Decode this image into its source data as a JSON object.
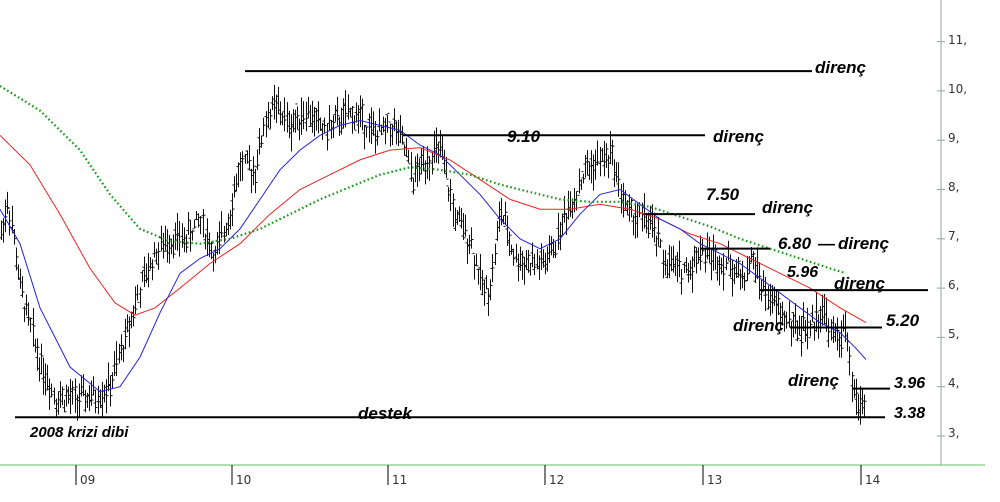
{
  "chart_data": {
    "type": "line",
    "y_axis": {
      "range": [
        2.4,
        11.8
      ],
      "ticks": [
        "3,",
        "4,",
        "5,",
        "6,",
        "7,",
        "8,",
        "9,",
        "10,",
        "11,"
      ]
    },
    "x_axis": {
      "ticks": [
        "09",
        "10",
        "11",
        "12",
        "13",
        "14"
      ]
    },
    "grid": false,
    "series": [
      {
        "color": "#000000",
        "style": "ohlc-bars"
      },
      {
        "color": "#2222dd",
        "style": "line"
      },
      {
        "color": "#ee2222",
        "style": "line"
      },
      {
        "color": "#119911",
        "style": "dotted"
      }
    ],
    "price_path": [
      [
        0,
        7.0
      ],
      [
        8,
        7.8
      ],
      [
        20,
        6.0
      ],
      [
        38,
        4.6
      ],
      [
        55,
        3.8
      ],
      [
        75,
        3.75
      ],
      [
        95,
        3.8
      ],
      [
        110,
        4.0
      ],
      [
        125,
        5.0
      ],
      [
        140,
        6.0
      ],
      [
        155,
        6.7
      ],
      [
        170,
        7.0
      ],
      [
        185,
        7.0
      ],
      [
        200,
        7.4
      ],
      [
        215,
        6.6
      ],
      [
        230,
        7.6
      ],
      [
        240,
        8.5
      ],
      [
        255,
        8.4
      ],
      [
        265,
        9.4
      ],
      [
        275,
        9.7
      ],
      [
        290,
        9.3
      ],
      [
        305,
        9.6
      ],
      [
        325,
        9.2
      ],
      [
        345,
        9.5
      ],
      [
        360,
        9.5
      ],
      [
        375,
        9.1
      ],
      [
        393,
        9.3
      ],
      [
        405,
        8.8
      ],
      [
        412,
        8.2
      ],
      [
        425,
        8.6
      ],
      [
        440,
        8.8
      ],
      [
        455,
        7.4
      ],
      [
        470,
        7.0
      ],
      [
        482,
        6.0
      ],
      [
        490,
        6.0
      ],
      [
        500,
        7.6
      ],
      [
        515,
        6.6
      ],
      [
        530,
        6.5
      ],
      [
        545,
        6.5
      ],
      [
        555,
        6.9
      ],
      [
        565,
        7.5
      ],
      [
        575,
        7.9
      ],
      [
        585,
        8.4
      ],
      [
        600,
        8.6
      ],
      [
        612,
        8.7
      ],
      [
        620,
        8.0
      ],
      [
        628,
        7.5
      ],
      [
        645,
        7.4
      ],
      [
        655,
        7.1
      ],
      [
        665,
        6.5
      ],
      [
        678,
        6.4
      ],
      [
        690,
        6.4
      ],
      [
        700,
        6.8
      ],
      [
        715,
        6.6
      ],
      [
        728,
        6.5
      ],
      [
        742,
        6.2
      ],
      [
        752,
        6.6
      ],
      [
        765,
        5.9
      ],
      [
        780,
        5.5
      ],
      [
        795,
        5.2
      ],
      [
        810,
        5.2
      ],
      [
        822,
        5.6
      ],
      [
        832,
        5.0
      ],
      [
        846,
        5.1
      ],
      [
        851,
        4.1
      ],
      [
        857,
        3.6
      ],
      [
        866,
        3.75
      ]
    ],
    "blue_ma_path": [
      [
        0,
        7.6
      ],
      [
        20,
        6.9
      ],
      [
        40,
        5.6
      ],
      [
        70,
        4.4
      ],
      [
        100,
        3.9
      ],
      [
        120,
        4.0
      ],
      [
        140,
        4.6
      ],
      [
        160,
        5.5
      ],
      [
        180,
        6.3
      ],
      [
        200,
        6.6
      ],
      [
        220,
        6.8
      ],
      [
        240,
        7.2
      ],
      [
        260,
        7.8
      ],
      [
        280,
        8.4
      ],
      [
        300,
        8.8
      ],
      [
        320,
        9.1
      ],
      [
        340,
        9.3
      ],
      [
        360,
        9.4
      ],
      [
        380,
        9.3
      ],
      [
        400,
        9.2
      ],
      [
        420,
        8.9
      ],
      [
        440,
        8.7
      ],
      [
        460,
        8.3
      ],
      [
        480,
        7.9
      ],
      [
        500,
        7.4
      ],
      [
        520,
        7.0
      ],
      [
        540,
        6.8
      ],
      [
        560,
        7.0
      ],
      [
        580,
        7.5
      ],
      [
        600,
        7.9
      ],
      [
        620,
        8.0
      ],
      [
        640,
        7.7
      ],
      [
        660,
        7.4
      ],
      [
        680,
        7.2
      ],
      [
        700,
        6.9
      ],
      [
        720,
        6.7
      ],
      [
        740,
        6.5
      ],
      [
        760,
        6.2
      ],
      [
        780,
        5.9
      ],
      [
        800,
        5.6
      ],
      [
        820,
        5.3
      ],
      [
        840,
        5.1
      ],
      [
        855,
        4.8
      ],
      [
        866,
        4.55
      ]
    ],
    "red_ma_path": [
      [
        0,
        9.1
      ],
      [
        30,
        8.5
      ],
      [
        60,
        7.5
      ],
      [
        90,
        6.4
      ],
      [
        115,
        5.7
      ],
      [
        135,
        5.45
      ],
      [
        155,
        5.6
      ],
      [
        180,
        6.0
      ],
      [
        210,
        6.5
      ],
      [
        240,
        6.9
      ],
      [
        270,
        7.5
      ],
      [
        300,
        8.0
      ],
      [
        330,
        8.3
      ],
      [
        360,
        8.6
      ],
      [
        390,
        8.8
      ],
      [
        420,
        8.85
      ],
      [
        450,
        8.6
      ],
      [
        480,
        8.2
      ],
      [
        510,
        7.8
      ],
      [
        540,
        7.6
      ],
      [
        570,
        7.6
      ],
      [
        600,
        7.7
      ],
      [
        630,
        7.6
      ],
      [
        660,
        7.4
      ],
      [
        690,
        7.1
      ],
      [
        720,
        6.9
      ],
      [
        750,
        6.6
      ],
      [
        780,
        6.3
      ],
      [
        810,
        6.0
      ],
      [
        840,
        5.6
      ],
      [
        866,
        5.3
      ]
    ],
    "green_ma_path": [
      [
        0,
        10.1
      ],
      [
        40,
        9.6
      ],
      [
        80,
        8.8
      ],
      [
        110,
        7.9
      ],
      [
        140,
        7.2
      ],
      [
        170,
        6.95
      ],
      [
        200,
        6.9
      ],
      [
        230,
        7.0
      ],
      [
        260,
        7.2
      ],
      [
        290,
        7.5
      ],
      [
        320,
        7.8
      ],
      [
        350,
        8.05
      ],
      [
        380,
        8.3
      ],
      [
        410,
        8.45
      ],
      [
        440,
        8.4
      ],
      [
        470,
        8.3
      ],
      [
        500,
        8.1
      ],
      [
        530,
        7.95
      ],
      [
        560,
        7.8
      ],
      [
        590,
        7.75
      ],
      [
        620,
        7.75
      ],
      [
        650,
        7.65
      ],
      [
        680,
        7.45
      ],
      [
        710,
        7.25
      ],
      [
        740,
        7.0
      ],
      [
        770,
        6.8
      ],
      [
        800,
        6.6
      ],
      [
        830,
        6.4
      ],
      [
        846,
        6.3
      ]
    ],
    "levels": [
      {
        "value": 10.4,
        "x0": 245,
        "x1": 812,
        "label": "direnç"
      },
      {
        "value": 9.1,
        "x0": 403,
        "x1": 705,
        "label": "direnç",
        "value_text": "9.10"
      },
      {
        "value": 7.5,
        "x0": 645,
        "x1": 755,
        "label": "direnç",
        "value_text": "7.50"
      },
      {
        "value": 6.8,
        "x0": 700,
        "x1": 770,
        "label": "direnç",
        "value_text": "6.80"
      },
      {
        "value": 5.96,
        "x0": 760,
        "x1": 928,
        "label": "direnç",
        "value_text": "5.96"
      },
      {
        "value": 5.2,
        "x0": 790,
        "x1": 882,
        "label": "direnç",
        "value_text": "5.20"
      },
      {
        "value": 3.96,
        "x0": 852,
        "x1": 890,
        "label": "direnç",
        "value_text": "3.96"
      },
      {
        "value": 3.38,
        "x0": 15,
        "x1": 885,
        "label": "destek",
        "value_text": "3.38"
      }
    ]
  },
  "texts": {
    "r1": "direnç",
    "r2": "direnç",
    "r3": "direnç",
    "r4": "direnç",
    "r5": "direnç",
    "r6": "direnç",
    "r7": "direnç",
    "v910": "9.10",
    "v750": "7.50",
    "v680": "6.80",
    "dash680": "—",
    "v596": "5.96",
    "v520": "5.20",
    "v396": "3.96",
    "v338": "3.38",
    "destek": "destek",
    "crisis": "2008 krizi dibi"
  }
}
